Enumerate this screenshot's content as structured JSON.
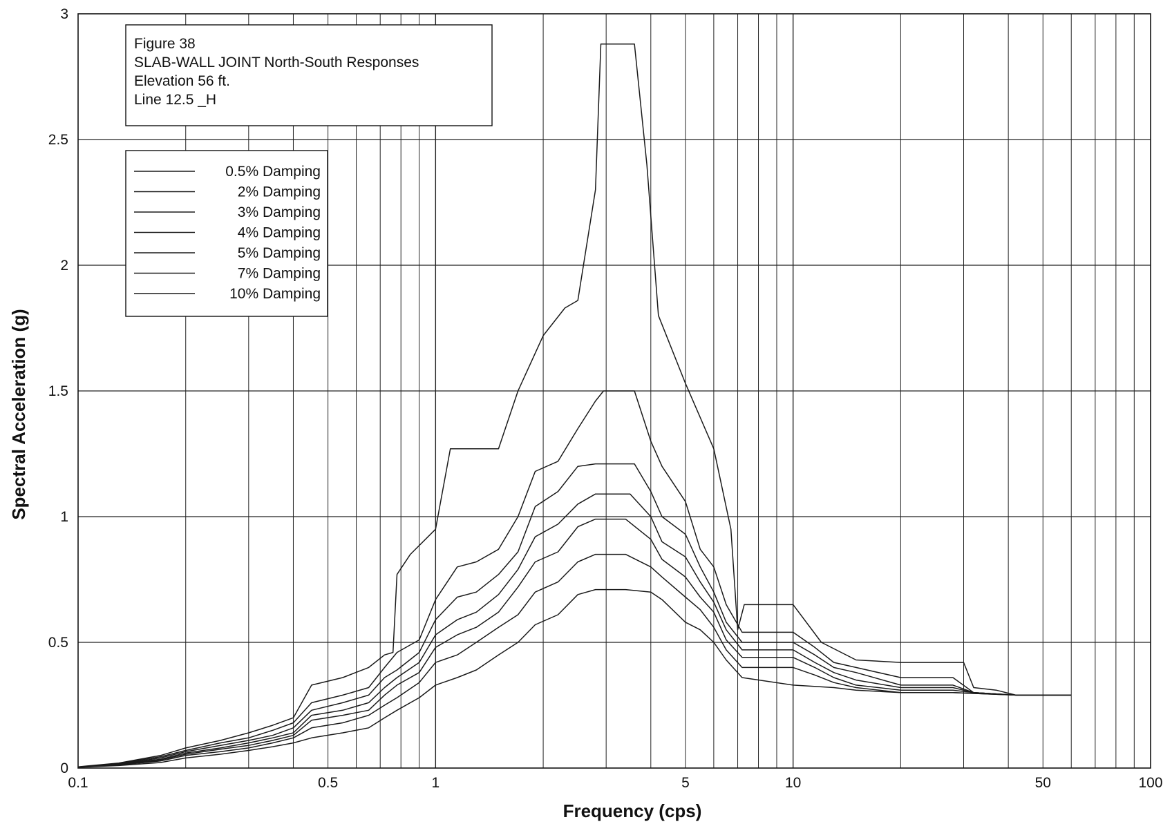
{
  "chart_data": {
    "type": "line",
    "xscale": "log",
    "xlim": [
      0.1,
      100
    ],
    "ylim": [
      0,
      3
    ],
    "grid": true,
    "xlabel": "Frequency (cps)",
    "ylabel": "Spectral Acceleration (g)",
    "xtick_labels": [
      {
        "value": 0.1,
        "label": "0.1"
      },
      {
        "value": 0.5,
        "label": "0.5"
      },
      {
        "value": 1,
        "label": "1"
      },
      {
        "value": 5,
        "label": "5"
      },
      {
        "value": 10,
        "label": "10"
      },
      {
        "value": 50,
        "label": "50"
      },
      {
        "value": 100,
        "label": "100"
      }
    ],
    "ytick_labels": [
      {
        "value": 0,
        "label": "0"
      },
      {
        "value": 0.5,
        "label": "0.5"
      },
      {
        "value": 1,
        "label": "1"
      },
      {
        "value": 1.5,
        "label": "1.5"
      },
      {
        "value": 2,
        "label": "2"
      },
      {
        "value": 2.5,
        "label": "2.5"
      },
      {
        "value": 3,
        "label": "3"
      }
    ],
    "title_lines": [
      "Figure  38",
      "SLAB-WALL JOINT  North-South Responses",
      "Elevation 56 ft.",
      "Line 12.5 _H"
    ],
    "legend_placement": "top-left",
    "line_color": "#1a1a1a",
    "series": [
      {
        "name": "0.5% Damping",
        "points": [
          [
            0.1,
            0.005
          ],
          [
            0.13,
            0.02
          ],
          [
            0.17,
            0.05
          ],
          [
            0.2,
            0.08
          ],
          [
            0.25,
            0.11
          ],
          [
            0.3,
            0.14
          ],
          [
            0.35,
            0.17
          ],
          [
            0.4,
            0.2
          ],
          [
            0.45,
            0.33
          ],
          [
            0.55,
            0.36
          ],
          [
            0.65,
            0.4
          ],
          [
            0.72,
            0.45
          ],
          [
            0.76,
            0.46
          ],
          [
            0.78,
            0.77
          ],
          [
            0.85,
            0.85
          ],
          [
            1.0,
            0.95
          ],
          [
            1.1,
            1.27
          ],
          [
            1.5,
            1.27
          ],
          [
            1.7,
            1.5
          ],
          [
            2.0,
            1.72
          ],
          [
            2.3,
            1.83
          ],
          [
            2.5,
            1.86
          ],
          [
            2.8,
            2.3
          ],
          [
            2.9,
            2.88
          ],
          [
            3.6,
            2.88
          ],
          [
            3.9,
            2.4
          ],
          [
            4.2,
            1.8
          ],
          [
            5.0,
            1.53
          ],
          [
            6.0,
            1.27
          ],
          [
            6.7,
            0.95
          ],
          [
            7.0,
            0.55
          ],
          [
            7.3,
            0.65
          ],
          [
            10.0,
            0.65
          ],
          [
            12.0,
            0.5
          ],
          [
            15.0,
            0.43
          ],
          [
            20.0,
            0.42
          ],
          [
            30.0,
            0.42
          ],
          [
            32.0,
            0.32
          ],
          [
            37.0,
            0.31
          ],
          [
            42.0,
            0.29
          ],
          [
            60.0,
            0.29
          ]
        ]
      },
      {
        "name": "2% Damping",
        "points": [
          [
            0.1,
            0.004
          ],
          [
            0.13,
            0.018
          ],
          [
            0.17,
            0.045
          ],
          [
            0.2,
            0.07
          ],
          [
            0.25,
            0.1
          ],
          [
            0.3,
            0.12
          ],
          [
            0.35,
            0.15
          ],
          [
            0.4,
            0.18
          ],
          [
            0.45,
            0.26
          ],
          [
            0.55,
            0.29
          ],
          [
            0.65,
            0.32
          ],
          [
            0.72,
            0.4
          ],
          [
            0.78,
            0.46
          ],
          [
            0.9,
            0.51
          ],
          [
            1.0,
            0.67
          ],
          [
            1.15,
            0.8
          ],
          [
            1.3,
            0.82
          ],
          [
            1.5,
            0.87
          ],
          [
            1.7,
            1.0
          ],
          [
            1.9,
            1.18
          ],
          [
            2.2,
            1.22
          ],
          [
            2.5,
            1.35
          ],
          [
            2.8,
            1.46
          ],
          [
            2.95,
            1.5
          ],
          [
            3.6,
            1.5
          ],
          [
            4.0,
            1.3
          ],
          [
            4.3,
            1.2
          ],
          [
            5.0,
            1.06
          ],
          [
            5.5,
            0.87
          ],
          [
            6.0,
            0.8
          ],
          [
            6.5,
            0.65
          ],
          [
            7.2,
            0.54
          ],
          [
            10.0,
            0.54
          ],
          [
            11.5,
            0.48
          ],
          [
            13.0,
            0.42
          ],
          [
            15.0,
            0.4
          ],
          [
            20.0,
            0.36
          ],
          [
            28.0,
            0.36
          ],
          [
            32.0,
            0.3
          ],
          [
            42.0,
            0.29
          ],
          [
            60.0,
            0.29
          ]
        ]
      },
      {
        "name": "3% Damping",
        "points": [
          [
            0.1,
            0.004
          ],
          [
            0.13,
            0.016
          ],
          [
            0.17,
            0.04
          ],
          [
            0.2,
            0.065
          ],
          [
            0.25,
            0.09
          ],
          [
            0.3,
            0.11
          ],
          [
            0.35,
            0.13
          ],
          [
            0.4,
            0.16
          ],
          [
            0.45,
            0.23
          ],
          [
            0.55,
            0.26
          ],
          [
            0.65,
            0.29
          ],
          [
            0.72,
            0.36
          ],
          [
            0.78,
            0.39
          ],
          [
            0.9,
            0.46
          ],
          [
            1.0,
            0.59
          ],
          [
            1.15,
            0.68
          ],
          [
            1.3,
            0.7
          ],
          [
            1.5,
            0.77
          ],
          [
            1.7,
            0.86
          ],
          [
            1.9,
            1.04
          ],
          [
            2.2,
            1.1
          ],
          [
            2.5,
            1.2
          ],
          [
            2.8,
            1.21
          ],
          [
            3.6,
            1.21
          ],
          [
            4.0,
            1.1
          ],
          [
            4.3,
            1.0
          ],
          [
            5.0,
            0.93
          ],
          [
            5.5,
            0.8
          ],
          [
            6.0,
            0.7
          ],
          [
            6.5,
            0.58
          ],
          [
            7.2,
            0.5
          ],
          [
            10.0,
            0.5
          ],
          [
            11.5,
            0.45
          ],
          [
            13.0,
            0.4
          ],
          [
            15.0,
            0.38
          ],
          [
            20.0,
            0.33
          ],
          [
            28.0,
            0.33
          ],
          [
            32.0,
            0.3
          ],
          [
            42.0,
            0.29
          ],
          [
            60.0,
            0.29
          ]
        ]
      },
      {
        "name": "4% Damping",
        "points": [
          [
            0.1,
            0.004
          ],
          [
            0.13,
            0.015
          ],
          [
            0.17,
            0.035
          ],
          [
            0.2,
            0.06
          ],
          [
            0.25,
            0.08
          ],
          [
            0.3,
            0.1
          ],
          [
            0.35,
            0.12
          ],
          [
            0.4,
            0.14
          ],
          [
            0.45,
            0.21
          ],
          [
            0.55,
            0.23
          ],
          [
            0.65,
            0.26
          ],
          [
            0.72,
            0.32
          ],
          [
            0.78,
            0.36
          ],
          [
            0.9,
            0.42
          ],
          [
            1.0,
            0.53
          ],
          [
            1.15,
            0.59
          ],
          [
            1.3,
            0.62
          ],
          [
            1.5,
            0.69
          ],
          [
            1.7,
            0.79
          ],
          [
            1.9,
            0.92
          ],
          [
            2.2,
            0.97
          ],
          [
            2.5,
            1.05
          ],
          [
            2.8,
            1.09
          ],
          [
            3.5,
            1.09
          ],
          [
            4.0,
            1.0
          ],
          [
            4.3,
            0.9
          ],
          [
            5.0,
            0.84
          ],
          [
            5.5,
            0.74
          ],
          [
            6.0,
            0.66
          ],
          [
            6.5,
            0.55
          ],
          [
            7.2,
            0.47
          ],
          [
            10.0,
            0.47
          ],
          [
            11.5,
            0.42
          ],
          [
            13.0,
            0.38
          ],
          [
            15.0,
            0.35
          ],
          [
            20.0,
            0.32
          ],
          [
            28.0,
            0.32
          ],
          [
            32.0,
            0.3
          ],
          [
            42.0,
            0.29
          ],
          [
            60.0,
            0.29
          ]
        ]
      },
      {
        "name": "5% Damping",
        "points": [
          [
            0.1,
            0.003
          ],
          [
            0.13,
            0.013
          ],
          [
            0.17,
            0.032
          ],
          [
            0.2,
            0.055
          ],
          [
            0.25,
            0.075
          ],
          [
            0.3,
            0.09
          ],
          [
            0.35,
            0.11
          ],
          [
            0.4,
            0.13
          ],
          [
            0.45,
            0.19
          ],
          [
            0.55,
            0.21
          ],
          [
            0.65,
            0.23
          ],
          [
            0.72,
            0.29
          ],
          [
            0.78,
            0.33
          ],
          [
            0.9,
            0.38
          ],
          [
            1.0,
            0.48
          ],
          [
            1.15,
            0.53
          ],
          [
            1.3,
            0.56
          ],
          [
            1.5,
            0.62
          ],
          [
            1.7,
            0.72
          ],
          [
            1.9,
            0.82
          ],
          [
            2.2,
            0.86
          ],
          [
            2.5,
            0.96
          ],
          [
            2.8,
            0.99
          ],
          [
            3.4,
            0.99
          ],
          [
            4.0,
            0.91
          ],
          [
            4.3,
            0.83
          ],
          [
            5.0,
            0.76
          ],
          [
            5.5,
            0.68
          ],
          [
            6.0,
            0.62
          ],
          [
            6.5,
            0.51
          ],
          [
            7.2,
            0.44
          ],
          [
            10.0,
            0.44
          ],
          [
            11.5,
            0.4
          ],
          [
            13.0,
            0.36
          ],
          [
            15.0,
            0.33
          ],
          [
            20.0,
            0.31
          ],
          [
            28.0,
            0.31
          ],
          [
            32.0,
            0.3
          ],
          [
            42.0,
            0.29
          ],
          [
            60.0,
            0.29
          ]
        ]
      },
      {
        "name": "7% Damping",
        "points": [
          [
            0.1,
            0.003
          ],
          [
            0.13,
            0.012
          ],
          [
            0.17,
            0.028
          ],
          [
            0.2,
            0.05
          ],
          [
            0.25,
            0.065
          ],
          [
            0.3,
            0.08
          ],
          [
            0.35,
            0.1
          ],
          [
            0.4,
            0.12
          ],
          [
            0.45,
            0.16
          ],
          [
            0.55,
            0.18
          ],
          [
            0.65,
            0.21
          ],
          [
            0.72,
            0.25
          ],
          [
            0.78,
            0.28
          ],
          [
            0.9,
            0.34
          ],
          [
            1.0,
            0.42
          ],
          [
            1.15,
            0.45
          ],
          [
            1.3,
            0.5
          ],
          [
            1.5,
            0.56
          ],
          [
            1.7,
            0.61
          ],
          [
            1.9,
            0.7
          ],
          [
            2.2,
            0.74
          ],
          [
            2.5,
            0.82
          ],
          [
            2.8,
            0.85
          ],
          [
            3.4,
            0.85
          ],
          [
            4.0,
            0.8
          ],
          [
            4.3,
            0.76
          ],
          [
            5.0,
            0.68
          ],
          [
            5.5,
            0.63
          ],
          [
            6.0,
            0.56
          ],
          [
            6.5,
            0.47
          ],
          [
            7.2,
            0.4
          ],
          [
            10.0,
            0.4
          ],
          [
            11.5,
            0.37
          ],
          [
            13.0,
            0.34
          ],
          [
            15.0,
            0.32
          ],
          [
            20.0,
            0.3
          ],
          [
            28.0,
            0.3
          ],
          [
            42.0,
            0.29
          ],
          [
            60.0,
            0.29
          ]
        ]
      },
      {
        "name": "10% Damping",
        "points": [
          [
            0.1,
            0.003
          ],
          [
            0.13,
            0.01
          ],
          [
            0.17,
            0.022
          ],
          [
            0.2,
            0.04
          ],
          [
            0.25,
            0.055
          ],
          [
            0.3,
            0.07
          ],
          [
            0.35,
            0.085
          ],
          [
            0.4,
            0.1
          ],
          [
            0.45,
            0.12
          ],
          [
            0.55,
            0.14
          ],
          [
            0.65,
            0.16
          ],
          [
            0.72,
            0.2
          ],
          [
            0.78,
            0.23
          ],
          [
            0.9,
            0.28
          ],
          [
            1.0,
            0.33
          ],
          [
            1.15,
            0.36
          ],
          [
            1.3,
            0.39
          ],
          [
            1.5,
            0.45
          ],
          [
            1.7,
            0.5
          ],
          [
            1.9,
            0.57
          ],
          [
            2.2,
            0.61
          ],
          [
            2.5,
            0.69
          ],
          [
            2.8,
            0.71
          ],
          [
            3.4,
            0.71
          ],
          [
            4.0,
            0.7
          ],
          [
            4.3,
            0.67
          ],
          [
            5.0,
            0.58
          ],
          [
            5.5,
            0.55
          ],
          [
            6.0,
            0.5
          ],
          [
            6.5,
            0.43
          ],
          [
            7.2,
            0.36
          ],
          [
            10.0,
            0.33
          ],
          [
            13.0,
            0.32
          ],
          [
            15.0,
            0.31
          ],
          [
            20.0,
            0.3
          ],
          [
            28.0,
            0.3
          ],
          [
            42.0,
            0.29
          ],
          [
            60.0,
            0.29
          ]
        ]
      }
    ]
  }
}
